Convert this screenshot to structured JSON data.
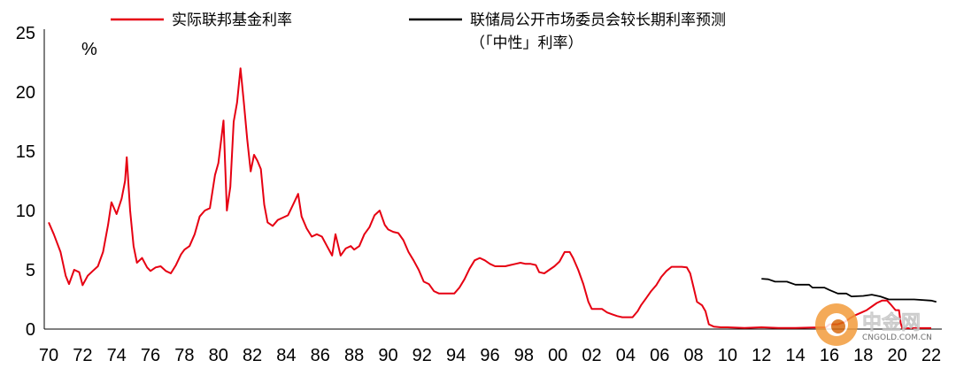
{
  "chart_data": {
    "type": "line",
    "title": "",
    "ylabel": "%",
    "xlabel": "",
    "ylim": [
      0,
      25
    ],
    "yticks": [
      0,
      5,
      10,
      15,
      20,
      25
    ],
    "xlim": [
      1970,
      2023
    ],
    "xtick_labels": [
      "70",
      "72",
      "74",
      "76",
      "78",
      "80",
      "82",
      "84",
      "86",
      "88",
      "90",
      "92",
      "94",
      "96",
      "98",
      "00",
      "02",
      "04",
      "06",
      "08",
      "10",
      "12",
      "14",
      "16",
      "18",
      "20",
      "22"
    ],
    "legend_placement": "top",
    "grid": false,
    "series": [
      {
        "name": "实际联邦基金利率",
        "color": "#e60012",
        "points": [
          [
            1970.0,
            9.0
          ],
          [
            1970.3,
            8.0
          ],
          [
            1970.7,
            6.5
          ],
          [
            1971.0,
            4.5
          ],
          [
            1971.2,
            3.8
          ],
          [
            1971.5,
            5.0
          ],
          [
            1971.8,
            4.8
          ],
          [
            1972.0,
            3.7
          ],
          [
            1972.3,
            4.5
          ],
          [
            1972.6,
            4.9
          ],
          [
            1972.9,
            5.3
          ],
          [
            1973.2,
            6.5
          ],
          [
            1973.5,
            8.8
          ],
          [
            1973.7,
            10.7
          ],
          [
            1974.0,
            9.7
          ],
          [
            1974.3,
            11.0
          ],
          [
            1974.5,
            12.5
          ],
          [
            1974.6,
            14.5
          ],
          [
            1974.8,
            10.0
          ],
          [
            1975.0,
            7.0
          ],
          [
            1975.2,
            5.6
          ],
          [
            1975.5,
            6.0
          ],
          [
            1975.8,
            5.2
          ],
          [
            1976.0,
            4.9
          ],
          [
            1976.3,
            5.2
          ],
          [
            1976.6,
            5.3
          ],
          [
            1976.9,
            4.9
          ],
          [
            1977.2,
            4.7
          ],
          [
            1977.5,
            5.4
          ],
          [
            1977.8,
            6.3
          ],
          [
            1978.0,
            6.7
          ],
          [
            1978.3,
            7.0
          ],
          [
            1978.6,
            8.0
          ],
          [
            1978.9,
            9.5
          ],
          [
            1979.2,
            10.0
          ],
          [
            1979.5,
            10.2
          ],
          [
            1979.8,
            13.0
          ],
          [
            1980.0,
            14.0
          ],
          [
            1980.3,
            17.6
          ],
          [
            1980.5,
            10.0
          ],
          [
            1980.7,
            12.0
          ],
          [
            1980.9,
            17.5
          ],
          [
            1981.1,
            19.1
          ],
          [
            1981.3,
            22.0
          ],
          [
            1981.5,
            19.1
          ],
          [
            1981.7,
            16.0
          ],
          [
            1981.9,
            13.3
          ],
          [
            1982.1,
            14.7
          ],
          [
            1982.3,
            14.2
          ],
          [
            1982.5,
            13.5
          ],
          [
            1982.7,
            10.5
          ],
          [
            1982.9,
            9.0
          ],
          [
            1983.2,
            8.7
          ],
          [
            1983.5,
            9.2
          ],
          [
            1983.8,
            9.4
          ],
          [
            1984.1,
            9.6
          ],
          [
            1984.4,
            10.5
          ],
          [
            1984.7,
            11.4
          ],
          [
            1984.9,
            9.5
          ],
          [
            1985.2,
            8.5
          ],
          [
            1985.5,
            7.8
          ],
          [
            1985.8,
            8.0
          ],
          [
            1986.1,
            7.8
          ],
          [
            1986.4,
            7.0
          ],
          [
            1986.7,
            6.2
          ],
          [
            1986.9,
            8.0
          ],
          [
            1987.2,
            6.2
          ],
          [
            1987.5,
            6.8
          ],
          [
            1987.8,
            7.0
          ],
          [
            1988.0,
            6.7
          ],
          [
            1988.3,
            7.0
          ],
          [
            1988.6,
            8.0
          ],
          [
            1988.9,
            8.6
          ],
          [
            1989.2,
            9.6
          ],
          [
            1989.5,
            10.0
          ],
          [
            1989.8,
            8.8
          ],
          [
            1990.0,
            8.4
          ],
          [
            1990.3,
            8.2
          ],
          [
            1990.6,
            8.1
          ],
          [
            1990.9,
            7.5
          ],
          [
            1991.2,
            6.5
          ],
          [
            1991.5,
            5.8
          ],
          [
            1991.8,
            5.0
          ],
          [
            1992.1,
            4.0
          ],
          [
            1992.4,
            3.8
          ],
          [
            1992.7,
            3.2
          ],
          [
            1993.0,
            3.0
          ],
          [
            1993.3,
            3.0
          ],
          [
            1993.6,
            3.0
          ],
          [
            1993.9,
            3.0
          ],
          [
            1994.2,
            3.5
          ],
          [
            1994.5,
            4.2
          ],
          [
            1994.8,
            5.1
          ],
          [
            1995.1,
            5.8
          ],
          [
            1995.4,
            6.0
          ],
          [
            1995.7,
            5.8
          ],
          [
            1996.0,
            5.5
          ],
          [
            1996.3,
            5.3
          ],
          [
            1996.6,
            5.3
          ],
          [
            1996.9,
            5.3
          ],
          [
            1997.2,
            5.4
          ],
          [
            1997.5,
            5.5
          ],
          [
            1997.8,
            5.6
          ],
          [
            1998.1,
            5.5
          ],
          [
            1998.4,
            5.5
          ],
          [
            1998.7,
            5.4
          ],
          [
            1998.9,
            4.8
          ],
          [
            1999.2,
            4.7
          ],
          [
            1999.5,
            5.0
          ],
          [
            1999.8,
            5.3
          ],
          [
            2000.1,
            5.7
          ],
          [
            2000.4,
            6.5
          ],
          [
            2000.7,
            6.5
          ],
          [
            2000.9,
            6.0
          ],
          [
            2001.2,
            5.0
          ],
          [
            2001.5,
            3.8
          ],
          [
            2001.8,
            2.3
          ],
          [
            2002.0,
            1.7
          ],
          [
            2002.3,
            1.7
          ],
          [
            2002.6,
            1.7
          ],
          [
            2002.9,
            1.4
          ],
          [
            2003.2,
            1.25
          ],
          [
            2003.5,
            1.1
          ],
          [
            2003.8,
            1.0
          ],
          [
            2004.1,
            1.0
          ],
          [
            2004.4,
            1.0
          ],
          [
            2004.7,
            1.5
          ],
          [
            2004.9,
            2.0
          ],
          [
            2005.2,
            2.6
          ],
          [
            2005.5,
            3.2
          ],
          [
            2005.8,
            3.7
          ],
          [
            2006.1,
            4.4
          ],
          [
            2006.4,
            4.9
          ],
          [
            2006.7,
            5.25
          ],
          [
            2007.0,
            5.25
          ],
          [
            2007.3,
            5.25
          ],
          [
            2007.6,
            5.2
          ],
          [
            2007.8,
            4.7
          ],
          [
            2008.0,
            3.5
          ],
          [
            2008.2,
            2.3
          ],
          [
            2008.5,
            2.0
          ],
          [
            2008.7,
            1.5
          ],
          [
            2008.9,
            0.4
          ],
          [
            2009.2,
            0.2
          ],
          [
            2009.6,
            0.15
          ],
          [
            2010.0,
            0.15
          ],
          [
            2011.0,
            0.1
          ],
          [
            2012.0,
            0.15
          ],
          [
            2013.0,
            0.1
          ],
          [
            2014.0,
            0.1
          ],
          [
            2015.0,
            0.13
          ],
          [
            2015.8,
            0.15
          ],
          [
            2016.0,
            0.4
          ],
          [
            2016.5,
            0.4
          ],
          [
            2016.9,
            0.6
          ],
          [
            2017.2,
            0.9
          ],
          [
            2017.5,
            1.15
          ],
          [
            2017.9,
            1.4
          ],
          [
            2018.2,
            1.6
          ],
          [
            2018.5,
            1.9
          ],
          [
            2018.8,
            2.2
          ],
          [
            2019.1,
            2.4
          ],
          [
            2019.4,
            2.4
          ],
          [
            2019.6,
            2.1
          ],
          [
            2019.9,
            1.6
          ],
          [
            2020.1,
            1.6
          ],
          [
            2020.2,
            0.5
          ],
          [
            2020.3,
            0.05
          ],
          [
            2021.0,
            0.08
          ],
          [
            2022.0,
            0.08
          ]
        ]
      },
      {
        "name": "联储局公开市场委员会较长期利率预测（「中性」利率）",
        "color": "#000000",
        "points": [
          [
            2012.0,
            4.25
          ],
          [
            2012.4,
            4.2
          ],
          [
            2012.8,
            4.0
          ],
          [
            2013.5,
            4.0
          ],
          [
            2014.0,
            3.75
          ],
          [
            2014.8,
            3.75
          ],
          [
            2015.0,
            3.5
          ],
          [
            2015.7,
            3.5
          ],
          [
            2016.0,
            3.3
          ],
          [
            2016.5,
            3.0
          ],
          [
            2017.0,
            3.0
          ],
          [
            2017.3,
            2.75
          ],
          [
            2018.0,
            2.8
          ],
          [
            2018.5,
            2.9
          ],
          [
            2019.0,
            2.75
          ],
          [
            2019.5,
            2.5
          ],
          [
            2020.0,
            2.5
          ],
          [
            2021.0,
            2.5
          ],
          [
            2022.0,
            2.4
          ],
          [
            2022.3,
            2.3
          ]
        ]
      }
    ]
  },
  "legend": {
    "items": [
      {
        "label": "实际联邦基金利率",
        "color": "#e60012"
      },
      {
        "label": "联储局公开市场委员会较长期利率预测",
        "label_line2": "（「中性」利率）",
        "color": "#000000"
      }
    ]
  },
  "watermark": {
    "name": "中金网",
    "site": "CNGOLD.COM.CN"
  }
}
